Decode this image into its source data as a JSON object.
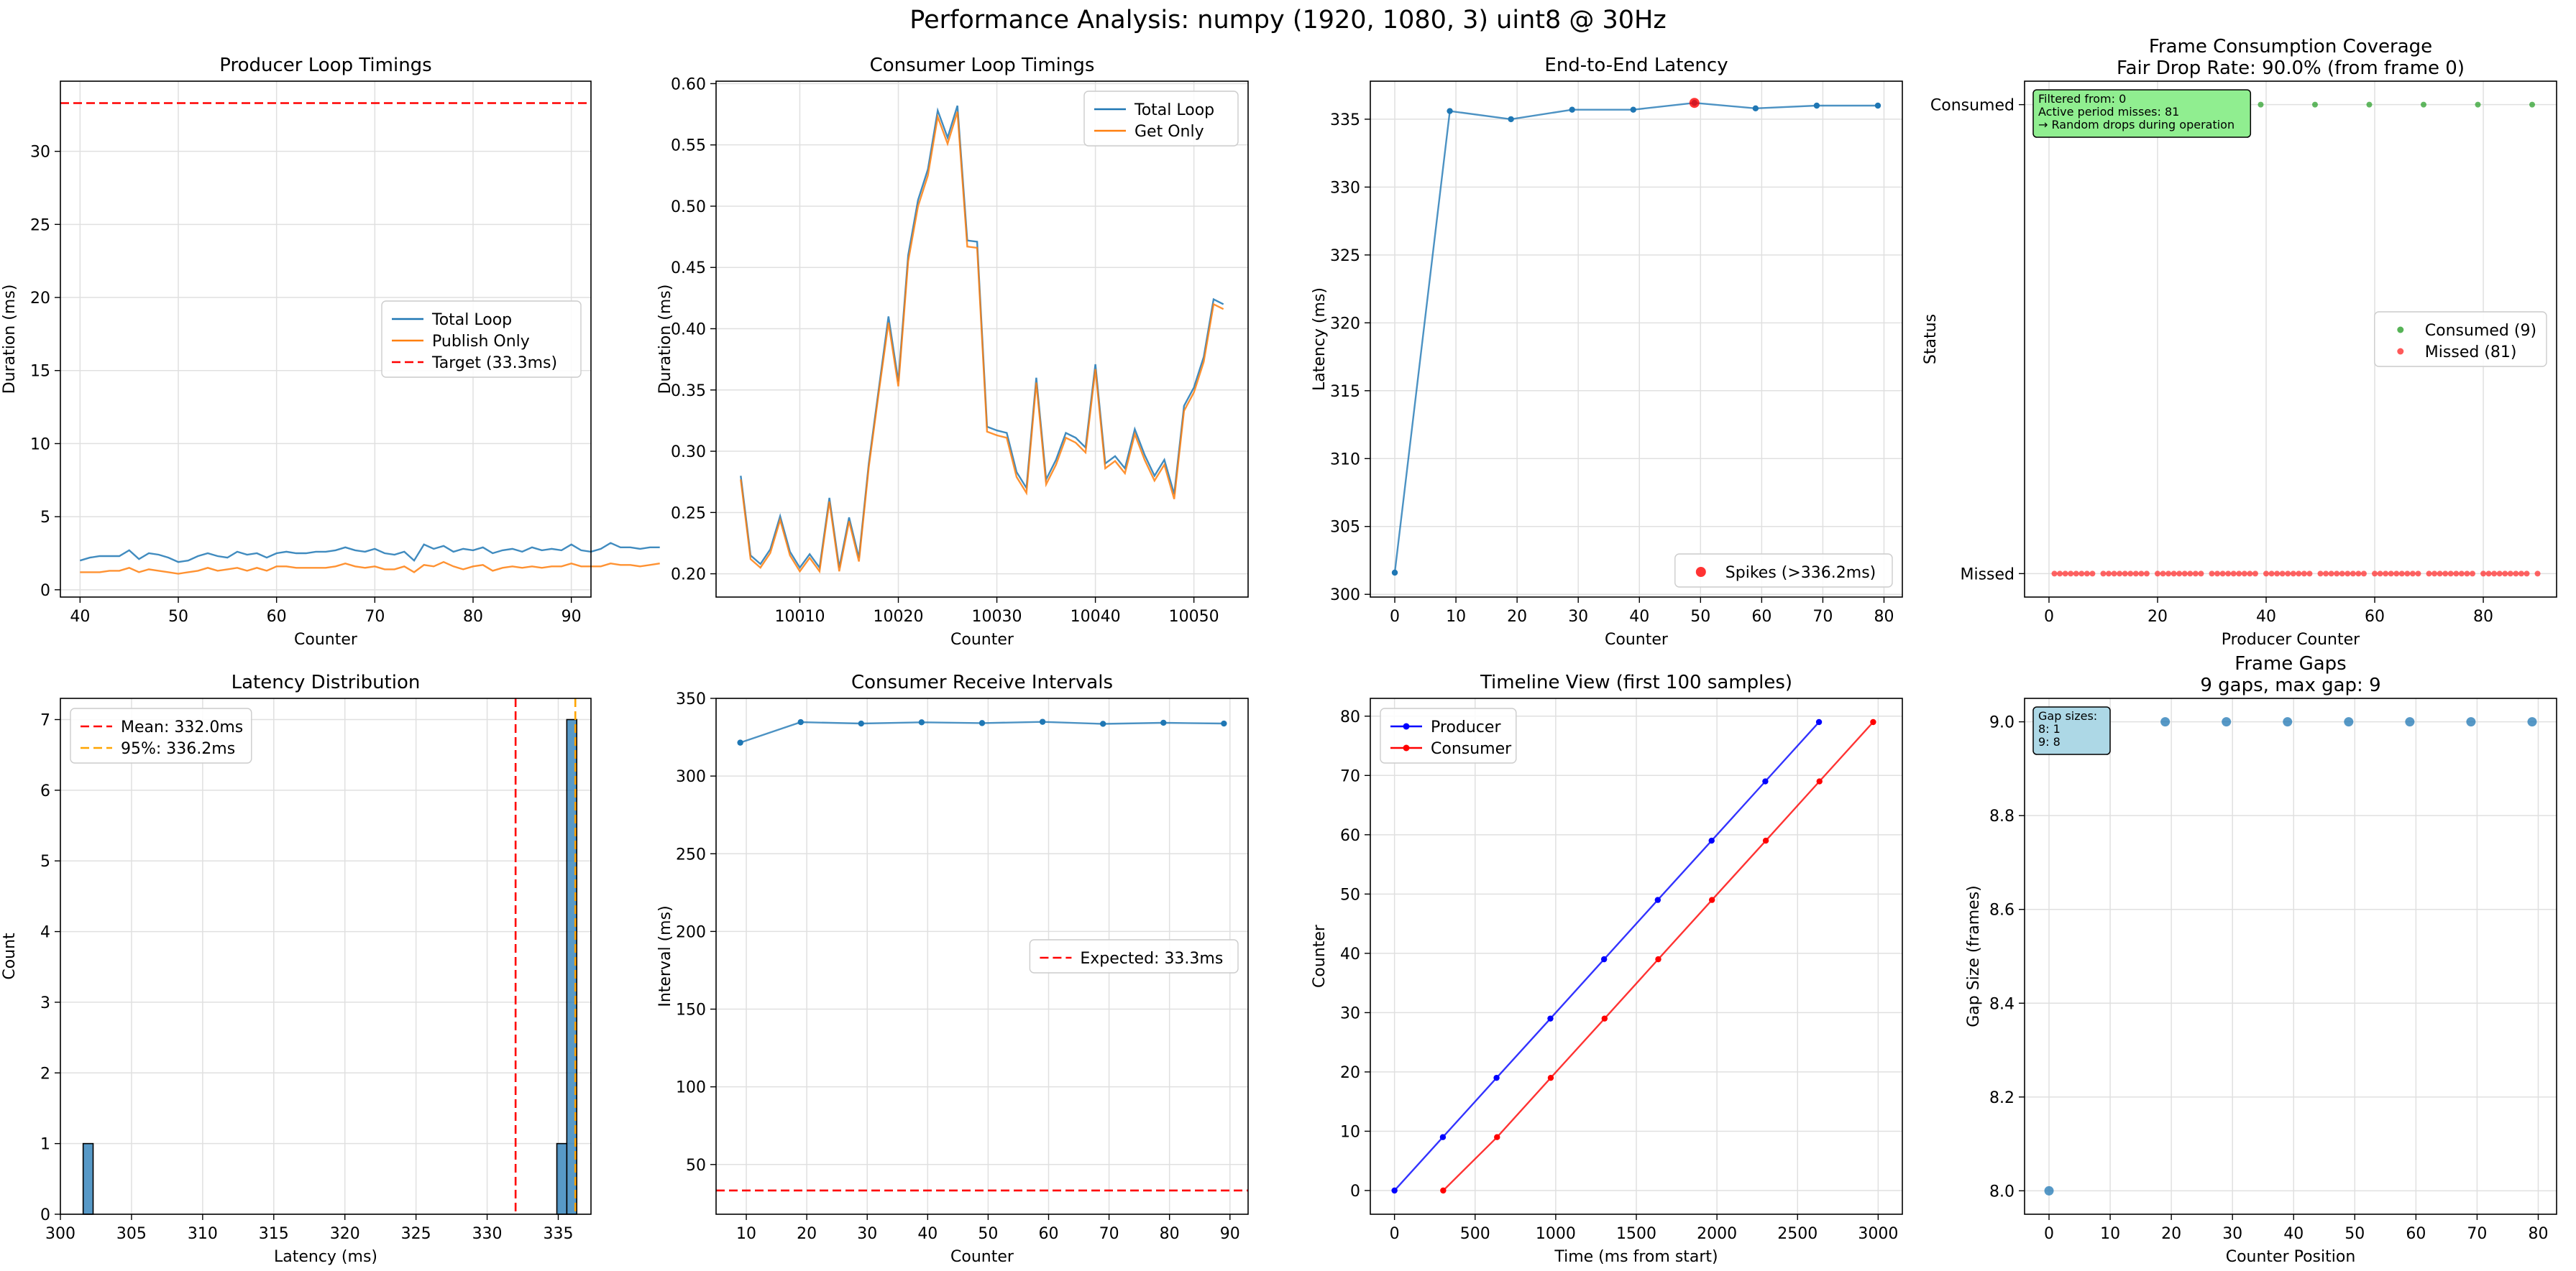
{
  "figure": {
    "suptitle": "Performance Analysis: numpy (1920, 1080, 3) uint8 @ 30Hz"
  },
  "colors": {
    "blue": "#1f77b4",
    "orange": "#ff7f0e",
    "red": "#d62728",
    "green": "#2ca02c",
    "grid": "#e0e0e0"
  },
  "chart_data": [
    {
      "id": "producer",
      "type": "line",
      "title": "Producer Loop Timings",
      "xlabel": "Counter",
      "ylabel": "Duration (ms)",
      "xlim": [
        38,
        92
      ],
      "ylim": [
        -0.5,
        34.8
      ],
      "xticks": [
        40,
        50,
        60,
        70,
        80,
        90
      ],
      "yticks": [
        0,
        5,
        10,
        15,
        20,
        25,
        30
      ],
      "grid": true,
      "legend": {
        "placement": "center-right"
      },
      "series": [
        {
          "name": "Total Loop",
          "color": "#1f77b4",
          "x_start": 40,
          "x_step": 1,
          "values": [
            2.0,
            2.2,
            2.3,
            2.3,
            2.3,
            2.7,
            2.1,
            2.5,
            2.4,
            2.2,
            1.9,
            2.0,
            2.3,
            2.5,
            2.3,
            2.2,
            2.6,
            2.4,
            2.5,
            2.2,
            2.5,
            2.6,
            2.5,
            2.5,
            2.6,
            2.6,
            2.7,
            2.9,
            2.7,
            2.6,
            2.8,
            2.5,
            2.4,
            2.6,
            2.0,
            3.1,
            2.8,
            3.0,
            2.6,
            2.8,
            2.7,
            2.9,
            2.5,
            2.7,
            2.8,
            2.6,
            2.9,
            2.7,
            2.8,
            2.7,
            3.1,
            2.7,
            2.6,
            2.8,
            3.2,
            2.9,
            2.9,
            2.8,
            2.9,
            2.9
          ]
        },
        {
          "name": "Publish Only",
          "color": "#ff7f0e",
          "x_start": 40,
          "x_step": 1,
          "values": [
            1.2,
            1.2,
            1.2,
            1.3,
            1.3,
            1.5,
            1.2,
            1.4,
            1.3,
            1.2,
            1.1,
            1.2,
            1.3,
            1.5,
            1.3,
            1.4,
            1.5,
            1.3,
            1.5,
            1.3,
            1.6,
            1.6,
            1.5,
            1.5,
            1.5,
            1.5,
            1.6,
            1.8,
            1.6,
            1.5,
            1.6,
            1.4,
            1.4,
            1.6,
            1.2,
            1.7,
            1.6,
            1.9,
            1.6,
            1.4,
            1.6,
            1.7,
            1.3,
            1.5,
            1.6,
            1.5,
            1.6,
            1.5,
            1.6,
            1.6,
            1.8,
            1.6,
            1.6,
            1.6,
            1.8,
            1.7,
            1.7,
            1.6,
            1.7,
            1.8
          ]
        }
      ],
      "hlines": [
        {
          "name": "Target (33.3ms)",
          "y": 33.3,
          "color": "#ff0000"
        }
      ]
    },
    {
      "id": "consumer",
      "type": "line",
      "title": "Consumer Loop Timings",
      "xlabel": "Counter",
      "ylabel": "Duration (ms)",
      "xlim": [
        10001.5,
        10055.5
      ],
      "ylim": [
        0.181,
        0.602
      ],
      "xticks": [
        10010,
        10020,
        10030,
        10040,
        10050
      ],
      "yticks": [
        0.2,
        0.25,
        0.3,
        0.35,
        0.4,
        0.45,
        0.5,
        0.55,
        0.6
      ],
      "ytick_format": "2",
      "grid": true,
      "legend": {
        "placement": "top-right"
      },
      "series": [
        {
          "name": "Total Loop",
          "color": "#1f77b4",
          "x_start": 10004,
          "x_step": 1,
          "values": [
            0.28,
            0.215,
            0.208,
            0.22,
            0.247,
            0.218,
            0.205,
            0.216,
            0.205,
            0.262,
            0.205,
            0.246,
            0.213,
            0.29,
            0.35,
            0.41,
            0.357,
            0.46,
            0.505,
            0.53,
            0.578,
            0.556,
            0.582,
            0.472,
            0.471,
            0.32,
            0.317,
            0.315,
            0.283,
            0.27,
            0.36,
            0.277,
            0.293,
            0.315,
            0.311,
            0.303,
            0.371,
            0.29,
            0.296,
            0.286,
            0.318,
            0.297,
            0.28,
            0.293,
            0.265,
            0.337,
            0.352,
            0.377,
            0.424,
            0.42
          ]
        },
        {
          "name": "Get Only",
          "color": "#ff7f0e",
          "x_start": 10004,
          "x_step": 1,
          "values": [
            0.277,
            0.212,
            0.205,
            0.217,
            0.244,
            0.215,
            0.202,
            0.213,
            0.202,
            0.259,
            0.202,
            0.243,
            0.21,
            0.287,
            0.347,
            0.405,
            0.353,
            0.455,
            0.5,
            0.525,
            0.573,
            0.551,
            0.577,
            0.467,
            0.466,
            0.316,
            0.313,
            0.311,
            0.279,
            0.266,
            0.356,
            0.273,
            0.289,
            0.311,
            0.307,
            0.299,
            0.367,
            0.286,
            0.292,
            0.282,
            0.314,
            0.293,
            0.276,
            0.289,
            0.261,
            0.333,
            0.348,
            0.373,
            0.42,
            0.416
          ]
        }
      ]
    },
    {
      "id": "latency",
      "type": "line",
      "title": "End-to-End Latency",
      "xlabel": "Counter",
      "ylabel": "Latency (ms)",
      "xlim": [
        -4,
        83
      ],
      "ylim": [
        299.8,
        337.8
      ],
      "xticks": [
        0,
        10,
        20,
        30,
        40,
        50,
        60,
        70,
        80
      ],
      "yticks": [
        300,
        305,
        310,
        315,
        320,
        325,
        330,
        335
      ],
      "grid": true,
      "legend": {
        "placement": "lower-right"
      },
      "series": [
        {
          "name": "",
          "color": "#1f77b4",
          "x": [
            0,
            9,
            19,
            29,
            39,
            49,
            59,
            69,
            79
          ],
          "values": [
            301.6,
            335.6,
            335.0,
            335.7,
            335.7,
            336.2,
            335.8,
            336.0,
            336.0
          ]
        }
      ],
      "spikes": {
        "name": "Spikes (>336.2ms)",
        "color": "#ff0000",
        "x": [
          49
        ],
        "values": [
          336.2
        ]
      }
    },
    {
      "id": "coverage",
      "type": "scatter",
      "title": "Frame Consumption Coverage",
      "subtitle": "Fair Drop Rate: 90.0% (from frame 0)",
      "xlabel": "Producer Counter",
      "ylabel": "Status",
      "xlim": [
        -4.5,
        93.5
      ],
      "ylim": [
        -0.05,
        1.05
      ],
      "xticks": [
        0,
        20,
        40,
        60,
        80
      ],
      "yticks": [
        0,
        1
      ],
      "ytick_labels": [
        "Missed",
        "Consumed"
      ],
      "grid": true,
      "legend": {
        "placement": "center-right"
      },
      "annotation": {
        "lines": [
          "Filtered from: 0",
          "Active period misses: 81",
          "→ Random drops during operation"
        ],
        "bg": "#90ee90"
      },
      "series": [
        {
          "name": "Consumed (9)",
          "color": "#2ca02c",
          "status": 1,
          "x": [
            9,
            19,
            29,
            39,
            49,
            59,
            69,
            79,
            89
          ]
        },
        {
          "name": "Missed (81)",
          "color": "#ff3030",
          "status": 0,
          "x": [
            1,
            2,
            3,
            4,
            5,
            6,
            7,
            8,
            10,
            11,
            12,
            13,
            14,
            15,
            16,
            17,
            18,
            20,
            21,
            22,
            23,
            24,
            25,
            26,
            27,
            28,
            30,
            31,
            32,
            33,
            34,
            35,
            36,
            37,
            38,
            40,
            41,
            42,
            43,
            44,
            45,
            46,
            47,
            48,
            50,
            51,
            52,
            53,
            54,
            55,
            56,
            57,
            58,
            60,
            61,
            62,
            63,
            64,
            65,
            66,
            67,
            68,
            70,
            71,
            72,
            73,
            74,
            75,
            76,
            77,
            78,
            80,
            81,
            82,
            83,
            84,
            85,
            86,
            87,
            88,
            90
          ]
        }
      ]
    },
    {
      "id": "histogram",
      "type": "bar",
      "title": "Latency Distribution",
      "xlabel": "Latency (ms)",
      "ylabel": "Count",
      "xlim": [
        300,
        337.3
      ],
      "ylim": [
        0,
        7.3
      ],
      "xticks": [
        300,
        305,
        310,
        315,
        320,
        325,
        330,
        335
      ],
      "yticks": [
        0,
        1,
        2,
        3,
        4,
        5,
        6,
        7
      ],
      "grid": true,
      "legend": {
        "placement": "top-left"
      },
      "color": "#1f77b4",
      "bins": [
        {
          "start": 301.6,
          "end": 302.3,
          "count": 1
        },
        {
          "start": 334.9,
          "end": 335.6,
          "count": 1
        },
        {
          "start": 335.6,
          "end": 336.3,
          "count": 7
        }
      ],
      "vlines": [
        {
          "name": "Mean: 332.0ms",
          "x": 332.0,
          "color": "#ff0000"
        },
        {
          "name": "95%: 336.2ms",
          "x": 336.2,
          "color": "#ffa500"
        }
      ]
    },
    {
      "id": "intervals",
      "type": "line",
      "title": "Consumer Receive Intervals",
      "xlabel": "Counter",
      "ylabel": "Interval (ms)",
      "xlim": [
        5,
        93
      ],
      "ylim": [
        18,
        350
      ],
      "xticks": [
        10,
        20,
        30,
        40,
        50,
        60,
        70,
        80,
        90
      ],
      "yticks": [
        50,
        100,
        150,
        200,
        250,
        300,
        350
      ],
      "grid": true,
      "legend": {
        "placement": "center-right"
      },
      "series": [
        {
          "name": "",
          "color": "#1f77b4",
          "x": [
            9,
            19,
            29,
            39,
            49,
            59,
            69,
            79,
            89
          ],
          "values": [
            321.5,
            334.7,
            333.8,
            334.6,
            334.1,
            334.9,
            333.6,
            334.3,
            333.8
          ]
        }
      ],
      "hlines": [
        {
          "name": "Expected: 33.3ms",
          "y": 33.3,
          "color": "#ff0000"
        }
      ]
    },
    {
      "id": "timeline",
      "type": "line",
      "title": "Timeline View (first 100 samples)",
      "xlabel": "Time (ms from start)",
      "ylabel": "Counter",
      "xlim": [
        -150,
        3150
      ],
      "ylim": [
        -4,
        83
      ],
      "xticks": [
        0,
        500,
        1000,
        1500,
        2000,
        2500,
        3000
      ],
      "yticks": [
        0,
        10,
        20,
        30,
        40,
        50,
        60,
        70,
        80
      ],
      "grid": true,
      "legend": {
        "placement": "top-left"
      },
      "series": [
        {
          "name": "Producer",
          "color": "#0000ff",
          "x": [
            0,
            300,
            633,
            967,
            1300,
            1633,
            1967,
            2300,
            2633
          ],
          "values": [
            0,
            9,
            19,
            29,
            39,
            49,
            59,
            69,
            79
          ]
        },
        {
          "name": "Consumer",
          "color": "#ff0000",
          "x": [
            302,
            636,
            969,
            1303,
            1636,
            1969,
            2303,
            2636,
            2969
          ],
          "values": [
            0,
            9,
            19,
            29,
            39,
            49,
            59,
            69,
            79
          ]
        }
      ]
    },
    {
      "id": "gaps",
      "type": "scatter",
      "title": "Frame Gaps",
      "subtitle": "9 gaps, max gap: 9",
      "xlabel": "Counter Position",
      "ylabel": "Gap Size (frames)",
      "xlim": [
        -4,
        83
      ],
      "ylim": [
        7.95,
        9.05
      ],
      "xticks": [
        0,
        10,
        20,
        30,
        40,
        50,
        60,
        70,
        80
      ],
      "yticks": [
        8.0,
        8.2,
        8.4,
        8.6,
        8.8,
        9.0
      ],
      "ytick_format": "1",
      "grid": true,
      "annotation": {
        "lines": [
          "Gap sizes:",
          "8: 1",
          "9: 8"
        ],
        "bg": "#add8e6"
      },
      "series": [
        {
          "name": "",
          "color": "#1f77b4",
          "x": [
            0,
            9,
            19,
            29,
            39,
            49,
            59,
            69,
            79
          ],
          "values": [
            8,
            9,
            9,
            9,
            9,
            9,
            9,
            9,
            9
          ]
        }
      ]
    }
  ]
}
